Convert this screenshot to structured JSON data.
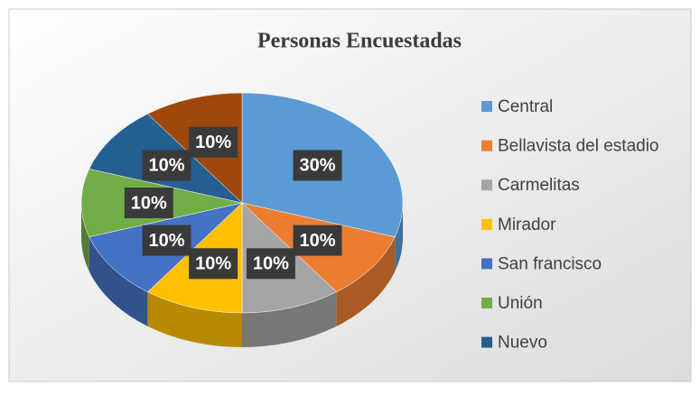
{
  "chart_data": {
    "type": "pie3d",
    "title": "Personas Encuestadas",
    "categories": [
      "Central",
      "Bellavista del estadio",
      "Carmelitas",
      "Mirador",
      "San francisco",
      "Unión",
      "Nuevo",
      null
    ],
    "values": [
      30,
      10,
      10,
      10,
      10,
      10,
      10,
      10
    ],
    "value_labels": [
      "30%",
      "10%",
      "10%",
      "10%",
      "10%",
      "10%",
      "10%",
      "10%"
    ],
    "colors": [
      "#5b9bd5",
      "#ed7d31",
      "#a5a5a5",
      "#ffc000",
      "#4472c4",
      "#70ad47",
      "#255e91",
      "#9e480e"
    ],
    "legend": "right"
  }
}
